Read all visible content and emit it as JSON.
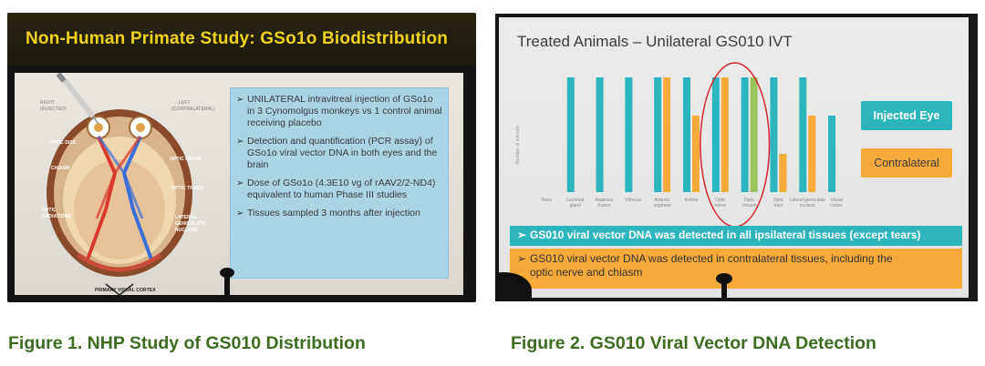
{
  "figure1": {
    "title": "Non-Human Primate Study: GSo1o Biodistribution",
    "brain_labels": {
      "right": "RIGHT",
      "right_sub": "(INJECTED)",
      "left": "LEFT",
      "left_sub": "(contralateral)",
      "optic_disc": "OPTIC DISC",
      "chiasm": "CHIASM",
      "optic_radiations_1": "OPTIC",
      "optic_radiations_2": "RADIATIONS",
      "optic_nerve": "OPTIC NERVE",
      "optic_tract": "OPTIC TRACT",
      "lgn_1": "LATERAL",
      "lgn_2": "GENICULATE",
      "lgn_3": "NUCLEUS",
      "visual_cortex": "PRIMARY VISUAL CORTEX"
    },
    "bullets": [
      "UNILATERAL intravitreal injection of GSo1o in 3 Cynomolgus monkeys vs 1 control animal receiving placebo",
      "Detection and quantification (PCR assay) of GSo1o viral vector DNA in both eyes and the brain",
      "Dose of GSo1o (4.3E10 vg of rAAV2/2-ND4) equivalent to human Phase III studies",
      "Tissues sampled 3 months after injection"
    ],
    "bullet_mark": "➢",
    "caption": "Figure 1.  NHP Study of GS010 Distribution"
  },
  "figure2": {
    "title": "Treated Animals – Unilateral GS010 IVT",
    "y_label": "Number of animals",
    "legend": {
      "injected": "Injected Eye",
      "contralateral": "Contralateral"
    },
    "banner_teal": "GS010 viral vector DNA was detected in all ipsilateral tissues (except tears)",
    "banner_orange_1": "GS010 viral vector DNA was detected in contralateral tissues, including the",
    "banner_orange_2": "optic nerve and chiasm",
    "banner_arrow": "➢",
    "caption": "Figure 2. GS010 Viral Vector DNA Detection",
    "colors": {
      "injected": "#2cb5bd",
      "contralateral": "#f7a93a",
      "highlight_green": "#9ac45a",
      "circle": "#d9262e"
    },
    "chart_data": {
      "type": "bar",
      "categories": [
        "Tears",
        "Lacrimal gland",
        "Aqueous humor",
        "Vitreous",
        "Anterior segment",
        "Retina",
        "Optic nerve",
        "Optic chiasm",
        "Optic tract",
        "Lateral geniculate nucleus",
        "Visual cortex"
      ],
      "series": [
        {
          "name": "Injected Eye",
          "values": [
            0,
            3,
            3,
            3,
            3,
            3,
            3,
            3,
            3,
            3,
            2
          ]
        },
        {
          "name": "Contralateral",
          "values": [
            0,
            0,
            0,
            0,
            3,
            2,
            3,
            3,
            1,
            2,
            0
          ]
        }
      ],
      "ylabel": "Number of animals",
      "ylim": [
        0,
        3
      ],
      "highlighted_categories": [
        "Optic nerve",
        "Optic chiasm"
      ],
      "legend_position": "right"
    }
  }
}
